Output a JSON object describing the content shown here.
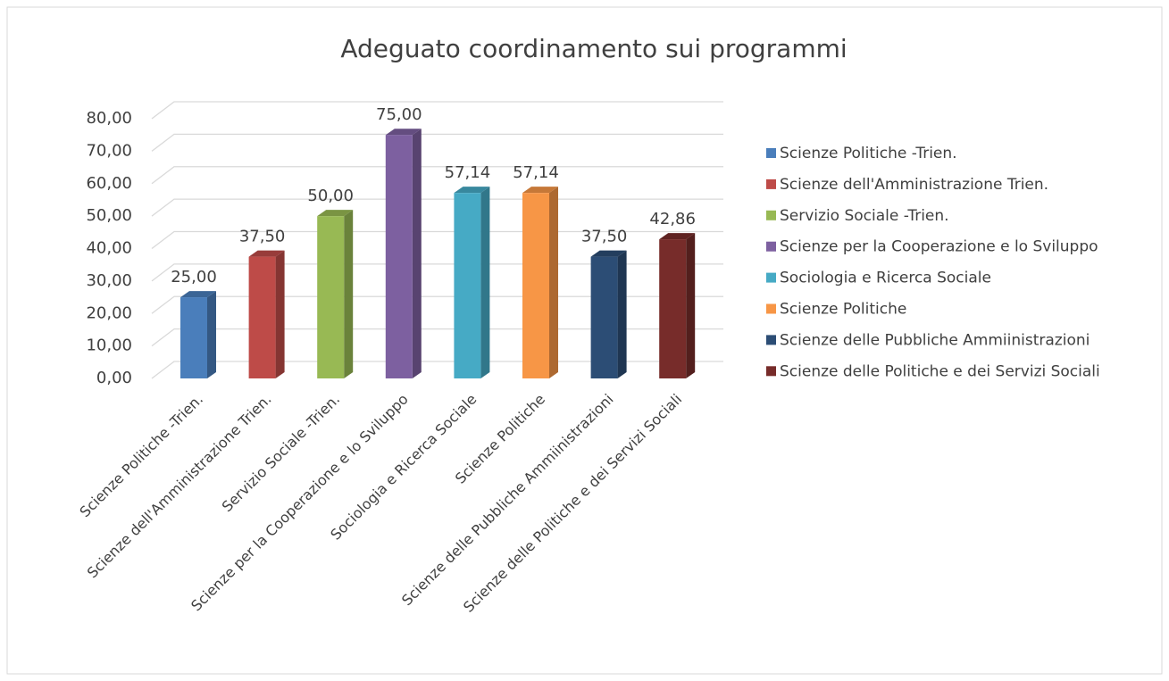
{
  "chart_data": {
    "type": "bar",
    "title": "Adeguato coordinamento sui programmi",
    "categories": [
      "Scienze Politiche -Trien.",
      "Scienze dell'Amministrazione Trien.",
      "Servizio Sociale -Trien.",
      "Scienze per la Cooperazione e lo Sviluppo",
      "Sociologia e Ricerca Sociale",
      "Scienze Politiche",
      "Scienze delle Pubbliche Ammiinistrazioni",
      "Scienze delle Politiche e dei Servizi Sociali"
    ],
    "values": [
      25,
      37.5,
      50,
      75,
      57.14,
      57.14,
      37.5,
      42.86
    ],
    "value_labels": [
      "25,00",
      "37,50",
      "50,00",
      "75,00",
      "57,14",
      "57,14",
      "37,50",
      "42,86"
    ],
    "colors": [
      "#4a7ebb",
      "#be4b48",
      "#98b954",
      "#7d60a0",
      "#46aac5",
      "#f79646",
      "#2c4d75",
      "#772c2a"
    ],
    "ylim": [
      0,
      80
    ],
    "yticks": [
      {
        "value": 0,
        "label": "0,00"
      },
      {
        "value": 10,
        "label": "10,00"
      },
      {
        "value": 20,
        "label": "20,00"
      },
      {
        "value": 30,
        "label": "30,00"
      },
      {
        "value": 40,
        "label": "40,00"
      },
      {
        "value": 50,
        "label": "50,00"
      },
      {
        "value": 60,
        "label": "60,00"
      },
      {
        "value": 70,
        "label": "70,00"
      },
      {
        "value": 80,
        "label": "80,00"
      }
    ],
    "grid": true,
    "legend": "right"
  }
}
